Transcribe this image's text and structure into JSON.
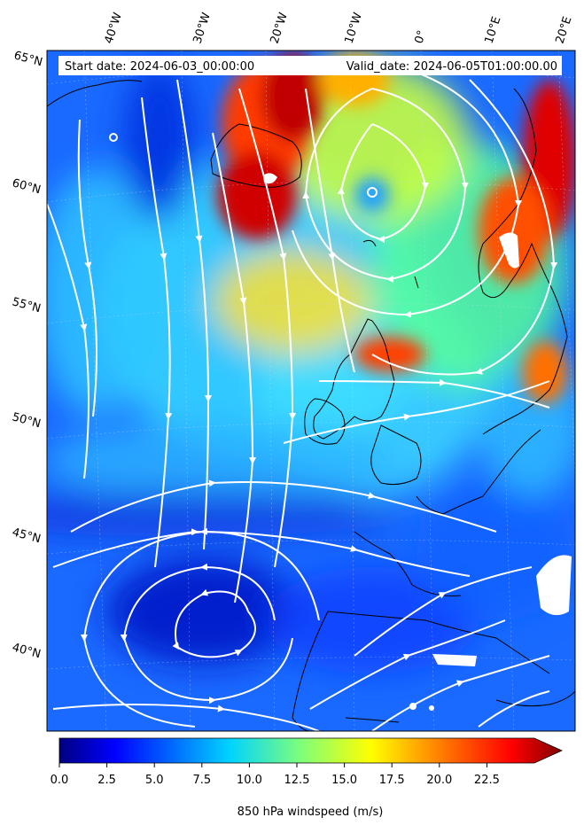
{
  "header": {
    "start_date": "Start date: 2024-06-03_00:00:00",
    "valid_date": "Valid_date: 2024-06-05T01:00:00.00"
  },
  "axes": {
    "longitude_labels": [
      "40°W",
      "30°W",
      "20°W",
      "10°W",
      "0°",
      "10°E",
      "20°E"
    ],
    "latitude_labels": [
      "65°N",
      "60°N",
      "55°N",
      "50°N",
      "45°N",
      "40°N"
    ]
  },
  "colorbar": {
    "label": "850 hPa windspeed (m/s)",
    "ticks": [
      "0.0",
      "2.5",
      "5.0",
      "7.5",
      "10.0",
      "12.5",
      "15.0",
      "17.5",
      "20.0",
      "22.5"
    ],
    "min": 0,
    "max": 25,
    "extend": "max",
    "colormap": "jet",
    "colors": [
      "#000080",
      "#0000ff",
      "#0080ff",
      "#00ffff",
      "#80ff80",
      "#ffff00",
      "#ff8000",
      "#ff0000",
      "#800000"
    ]
  },
  "map": {
    "ocean_background_color": "#1a6aff",
    "coastline_color": "#000000",
    "streamline_color": "#ffffff"
  }
}
